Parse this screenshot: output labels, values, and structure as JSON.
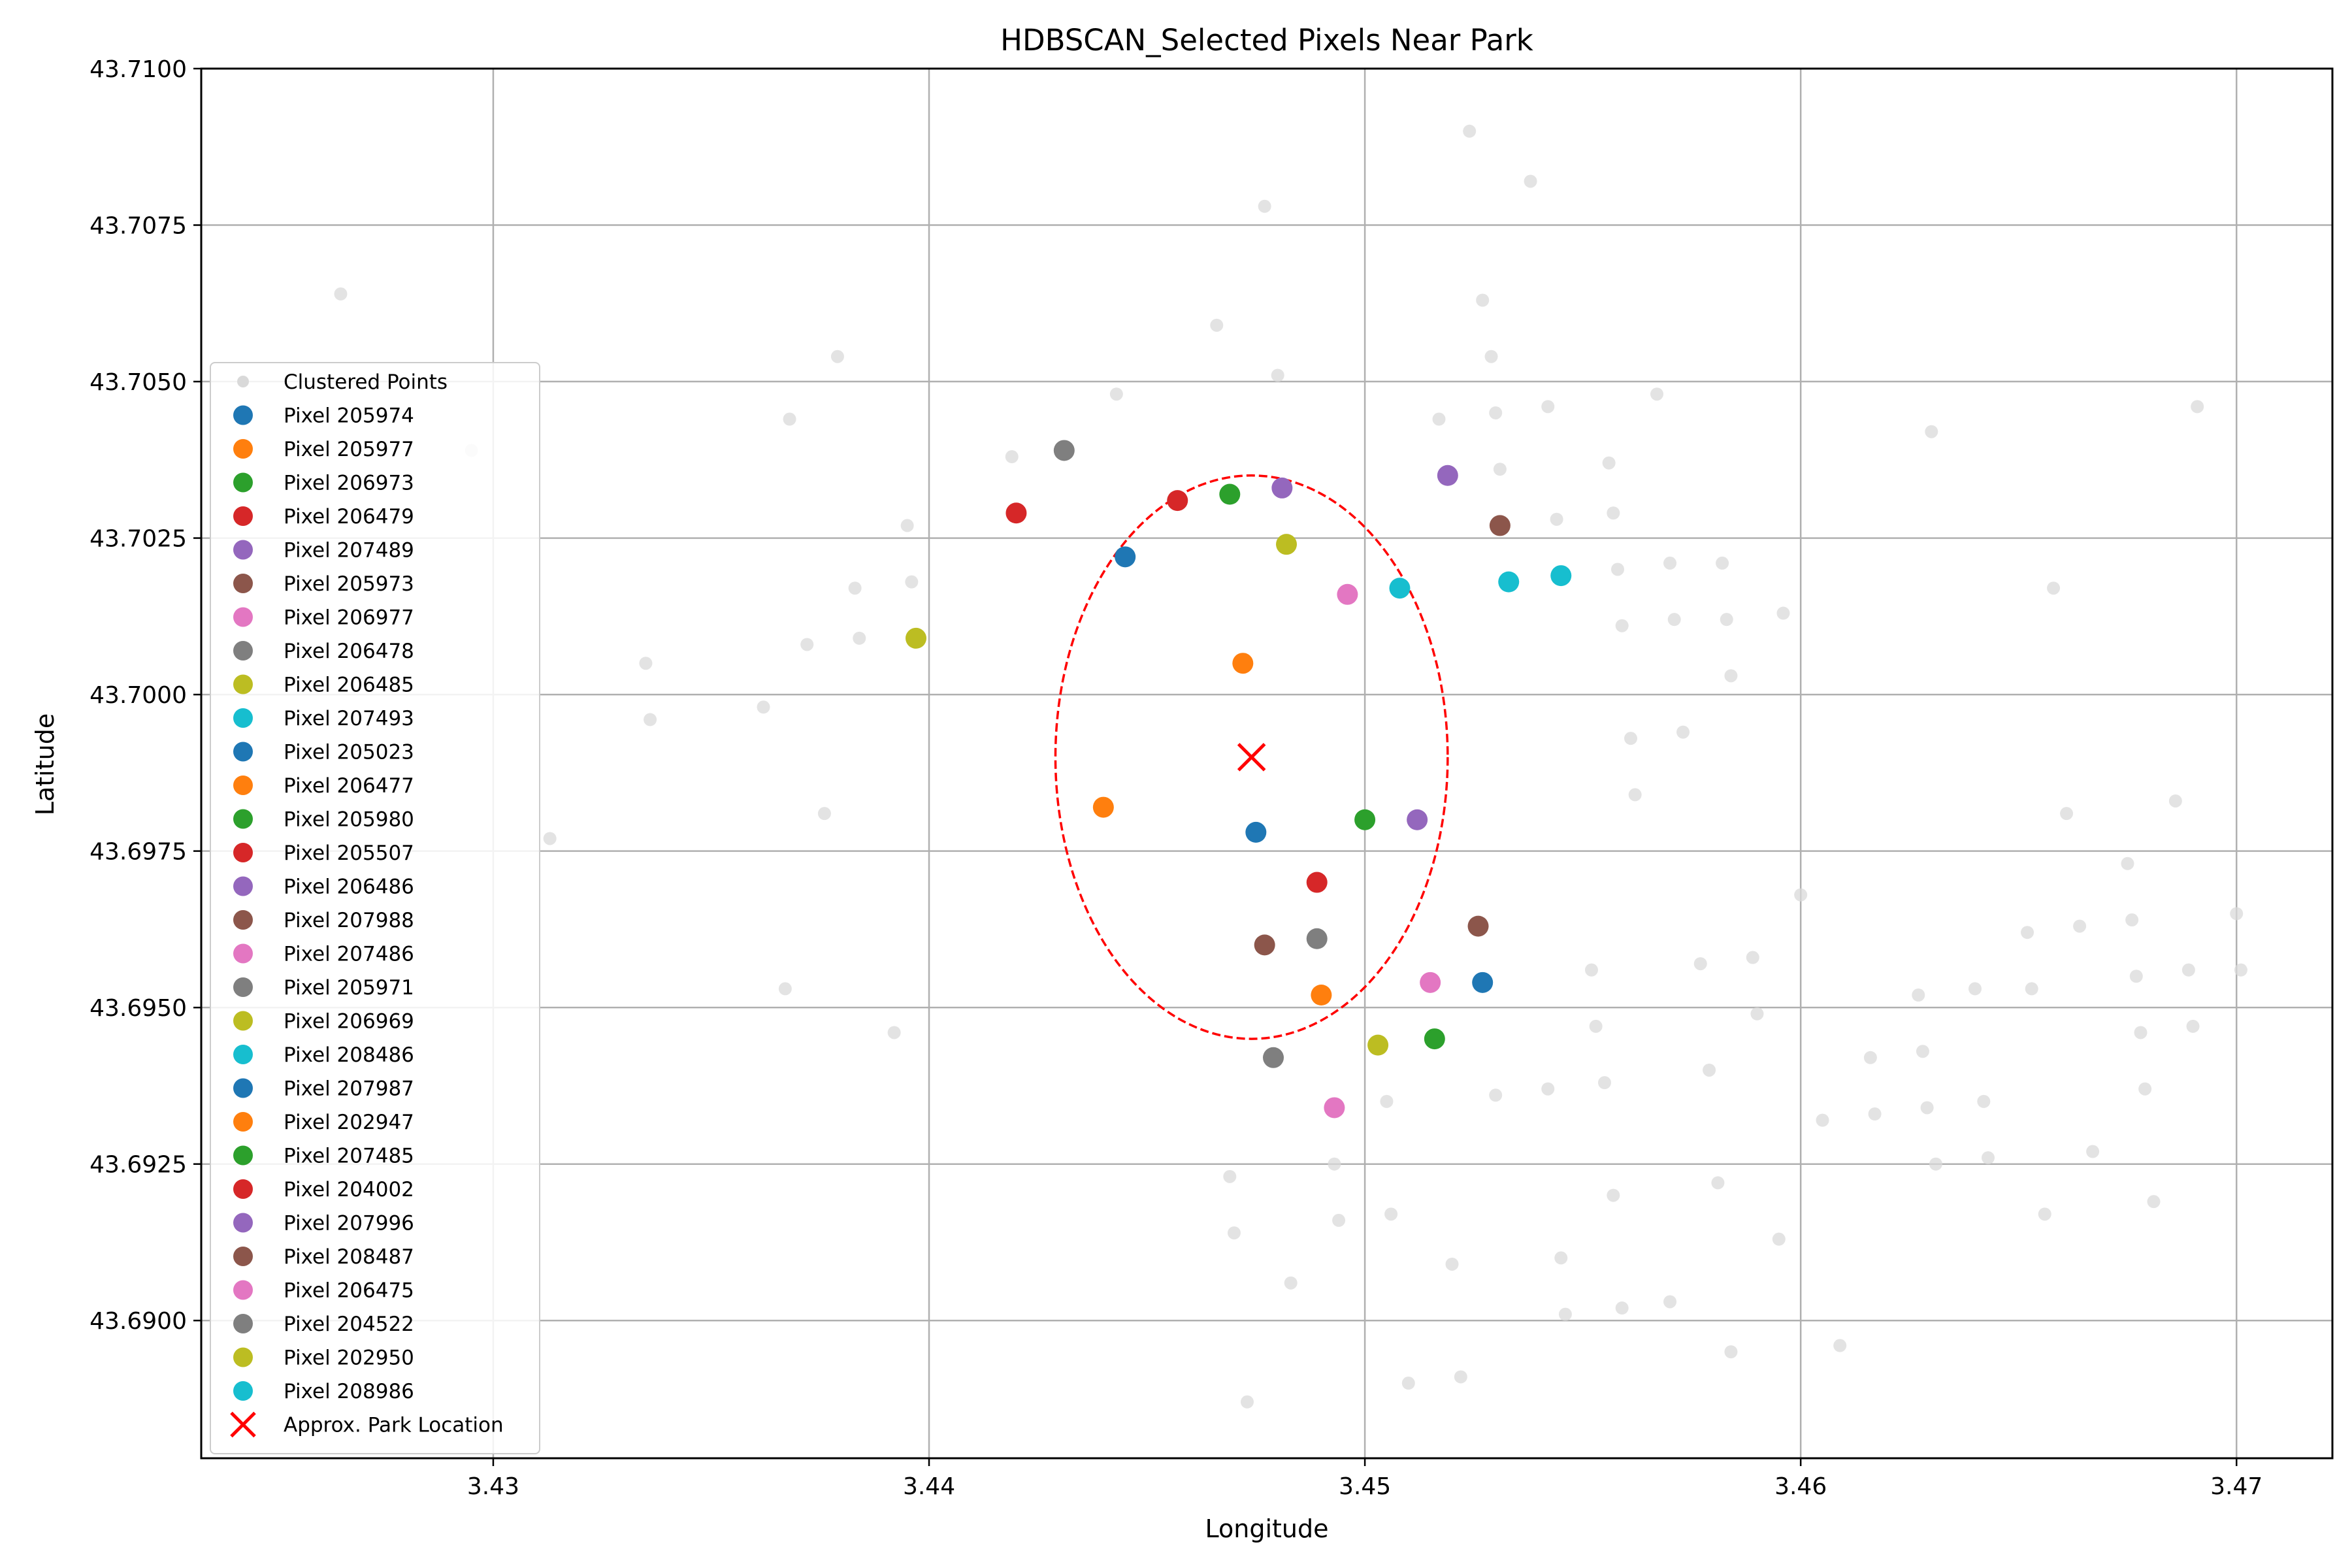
{
  "chart_data": {
    "type": "scatter",
    "title": "HDBSCAN_Selected Pixels Near Park",
    "xlabel": "Longitude",
    "ylabel": "Latitude",
    "xlim": [
      3.4233,
      3.4722
    ],
    "ylim": [
      43.6878,
      43.71
    ],
    "xticks": [
      3.43,
      3.44,
      3.45,
      3.46,
      3.47
    ],
    "xtick_labels": [
      "3.43",
      "3.44",
      "3.45",
      "3.46",
      "3.47"
    ],
    "yticks": [
      43.69,
      43.6925,
      43.695,
      43.6975,
      43.7,
      43.7025,
      43.705,
      43.7075,
      43.71
    ],
    "ytick_labels": [
      "43.6900",
      "43.6925",
      "43.6950",
      "43.6975",
      "43.7000",
      "43.7025",
      "43.7050",
      "43.7075",
      "43.7100"
    ],
    "grid": true,
    "legend_position": "center-left",
    "background_points": {
      "name": "Clustered Points",
      "color": "#d9d9d9",
      "points": [
        [
          3.4265,
          43.7064
        ],
        [
          3.4295,
          43.7039
        ],
        [
          3.4313,
          43.6977
        ],
        [
          3.4335,
          43.7005
        ],
        [
          3.4336,
          43.6996
        ],
        [
          3.4362,
          43.6998
        ],
        [
          3.4367,
          43.6953
        ],
        [
          3.4368,
          43.7044
        ],
        [
          3.4372,
          43.7008
        ],
        [
          3.4376,
          43.6981
        ],
        [
          3.4379,
          43.7054
        ],
        [
          3.4383,
          43.7017
        ],
        [
          3.4384,
          43.7009
        ],
        [
          3.4392,
          43.6946
        ],
        [
          3.4395,
          43.7027
        ],
        [
          3.4396,
          43.7018
        ],
        [
          3.4419,
          43.7038
        ],
        [
          3.4443,
          43.7048
        ],
        [
          3.4466,
          43.7059
        ],
        [
          3.4469,
          43.6923
        ],
        [
          3.447,
          43.6914
        ],
        [
          3.4473,
          43.6887
        ],
        [
          3.4477,
          43.7078
        ],
        [
          3.448,
          43.7051
        ],
        [
          3.4483,
          43.6906
        ],
        [
          3.4493,
          43.6925
        ],
        [
          3.4494,
          43.6916
        ],
        [
          3.4505,
          43.6935
        ],
        [
          3.4506,
          43.6917
        ],
        [
          3.451,
          43.689
        ],
        [
          3.4517,
          43.7044
        ],
        [
          3.452,
          43.6909
        ],
        [
          3.4522,
          43.6891
        ],
        [
          3.4524,
          43.709
        ],
        [
          3.4527,
          43.7063
        ],
        [
          3.4529,
          43.7054
        ],
        [
          3.453,
          43.7045
        ],
        [
          3.453,
          43.6936
        ],
        [
          3.4531,
          43.7036
        ],
        [
          3.4538,
          43.7082
        ],
        [
          3.4542,
          43.7046
        ],
        [
          3.4542,
          43.6937
        ],
        [
          3.4544,
          43.7028
        ],
        [
          3.4545,
          43.691
        ],
        [
          3.4546,
          43.6901
        ],
        [
          3.4552,
          43.6956
        ],
        [
          3.4553,
          43.6947
        ],
        [
          3.4555,
          43.6938
        ],
        [
          3.4556,
          43.7037
        ],
        [
          3.4557,
          43.692
        ],
        [
          3.4557,
          43.7029
        ],
        [
          3.4558,
          43.702
        ],
        [
          3.4559,
          43.6902
        ],
        [
          3.4559,
          43.7011
        ],
        [
          3.4561,
          43.6993
        ],
        [
          3.4562,
          43.6984
        ],
        [
          3.4567,
          43.7048
        ],
        [
          3.4577,
          43.6957
        ],
        [
          3.4579,
          43.694
        ],
        [
          3.457,
          43.7021
        ],
        [
          3.457,
          43.6903
        ],
        [
          3.4571,
          43.7012
        ],
        [
          3.4573,
          43.6994
        ],
        [
          3.4582,
          43.7021
        ],
        [
          3.4583,
          43.7012
        ],
        [
          3.4581,
          43.6922
        ],
        [
          3.4584,
          43.7003
        ],
        [
          3.4584,
          43.6895
        ],
        [
          3.4589,
          43.6958
        ],
        [
          3.459,
          43.6949
        ],
        [
          3.4595,
          43.6913
        ],
        [
          3.4596,
          43.7013
        ],
        [
          3.46,
          43.6968
        ],
        [
          3.4605,
          43.6932
        ],
        [
          3.4609,
          43.6896
        ],
        [
          3.4616,
          43.6942
        ],
        [
          3.4617,
          43.6933
        ],
        [
          3.4627,
          43.6952
        ],
        [
          3.4628,
          43.6943
        ],
        [
          3.4629,
          43.6934
        ],
        [
          3.463,
          43.7042
        ],
        [
          3.4631,
          43.6925
        ],
        [
          3.464,
          43.6953
        ],
        [
          3.4642,
          43.6935
        ],
        [
          3.4643,
          43.6926
        ],
        [
          3.4652,
          43.6962
        ],
        [
          3.4653,
          43.6953
        ],
        [
          3.4656,
          43.6917
        ],
        [
          3.4658,
          43.7017
        ],
        [
          3.4661,
          43.6981
        ],
        [
          3.4664,
          43.6963
        ],
        [
          3.4667,
          43.6927
        ],
        [
          3.4675,
          43.6973
        ],
        [
          3.4676,
          43.6964
        ],
        [
          3.4677,
          43.6955
        ],
        [
          3.4678,
          43.6946
        ],
        [
          3.4679,
          43.6937
        ],
        [
          3.4681,
          43.6919
        ],
        [
          3.4686,
          43.6983
        ],
        [
          3.4689,
          43.6956
        ],
        [
          3.469,
          43.6947
        ],
        [
          3.4691,
          43.7046
        ],
        [
          3.47,
          43.6965
        ],
        [
          3.4701,
          43.6956
        ]
      ]
    },
    "series": [
      {
        "name": "Pixel 205974",
        "color": "#1f77b4",
        "x": 3.4445,
        "y": 43.7022
      },
      {
        "name": "Pixel 205977",
        "color": "#ff7f0e",
        "x": 3.4472,
        "y": 43.7005
      },
      {
        "name": "Pixel 206973",
        "color": "#2ca02c",
        "x": 3.4469,
        "y": 43.7032
      },
      {
        "name": "Pixel 206479",
        "color": "#d62728",
        "x": 3.4457,
        "y": 43.7031
      },
      {
        "name": "Pixel 207489",
        "color": "#9467bd",
        "x": 3.4481,
        "y": 43.7033
      },
      {
        "name": "Pixel 205973",
        "color": "#8c564b",
        "x": 3.4531,
        "y": 43.7027
      },
      {
        "name": "Pixel 206977",
        "color": "#e377c2",
        "x": 3.4496,
        "y": 43.7016
      },
      {
        "name": "Pixel 206478",
        "color": "#7f7f7f",
        "x": 3.4431,
        "y": 43.7039
      },
      {
        "name": "Pixel 206485",
        "color": "#bcbd22",
        "x": 3.4482,
        "y": 43.7024
      },
      {
        "name": "Pixel 207493",
        "color": "#17becf",
        "x": 3.4508,
        "y": 43.7017
      },
      {
        "name": "Pixel 205023",
        "color": "#1f77b4",
        "x": 3.4475,
        "y": 43.6978
      },
      {
        "name": "Pixel 206477",
        "color": "#ff7f0e",
        "x": 3.444,
        "y": 43.6982
      },
      {
        "name": "Pixel 205980",
        "color": "#2ca02c",
        "x": 3.45,
        "y": 43.698
      },
      {
        "name": "Pixel 205507",
        "color": "#d62728",
        "x": 3.4489,
        "y": 43.697
      },
      {
        "name": "Pixel 206486",
        "color": "#9467bd",
        "x": 3.4512,
        "y": 43.698
      },
      {
        "name": "Pixel 207988",
        "color": "#8c564b",
        "x": 3.4477,
        "y": 43.696
      },
      {
        "name": "Pixel 207486",
        "color": "#e377c2",
        "x": 3.4515,
        "y": 43.6954
      },
      {
        "name": "Pixel 205971",
        "color": "#7f7f7f",
        "x": 3.4489,
        "y": 43.6961
      },
      {
        "name": "Pixel 206969",
        "color": "#bcbd22",
        "x": 3.4503,
        "y": 43.6944
      },
      {
        "name": "Pixel 208486",
        "color": "#17becf",
        "x": 3.4533,
        "y": 43.7018
      },
      {
        "name": "Pixel 207987",
        "color": "#1f77b4",
        "x": 3.4527,
        "y": 43.6954
      },
      {
        "name": "Pixel 202947",
        "color": "#ff7f0e",
        "x": 3.449,
        "y": 43.6952
      },
      {
        "name": "Pixel 207485",
        "color": "#2ca02c",
        "x": 3.4516,
        "y": 43.6945
      },
      {
        "name": "Pixel 204002",
        "color": "#d62728",
        "x": 3.442,
        "y": 43.7029
      },
      {
        "name": "Pixel 207996",
        "color": "#9467bd",
        "x": 3.4519,
        "y": 43.7035
      },
      {
        "name": "Pixel 208487",
        "color": "#8c564b",
        "x": 3.4526,
        "y": 43.6963
      },
      {
        "name": "Pixel 206475",
        "color": "#e377c2",
        "x": 3.4493,
        "y": 43.6934
      },
      {
        "name": "Pixel 204522",
        "color": "#7f7f7f",
        "x": 3.4479,
        "y": 43.6942
      },
      {
        "name": "Pixel 202950",
        "color": "#bcbd22",
        "x": 3.4397,
        "y": 43.7009
      },
      {
        "name": "Pixel 208986",
        "color": "#17becf",
        "x": 3.4545,
        "y": 43.7019
      }
    ],
    "park_marker": {
      "name": "Approx. Park Location",
      "color": "#ff0000",
      "x": 3.4474,
      "y": 43.699
    },
    "ellipse": {
      "color": "#ff0000",
      "style": "dashed",
      "cx": 3.4474,
      "cy": 43.699,
      "rx": 0.0045,
      "ry": 0.0045
    }
  }
}
